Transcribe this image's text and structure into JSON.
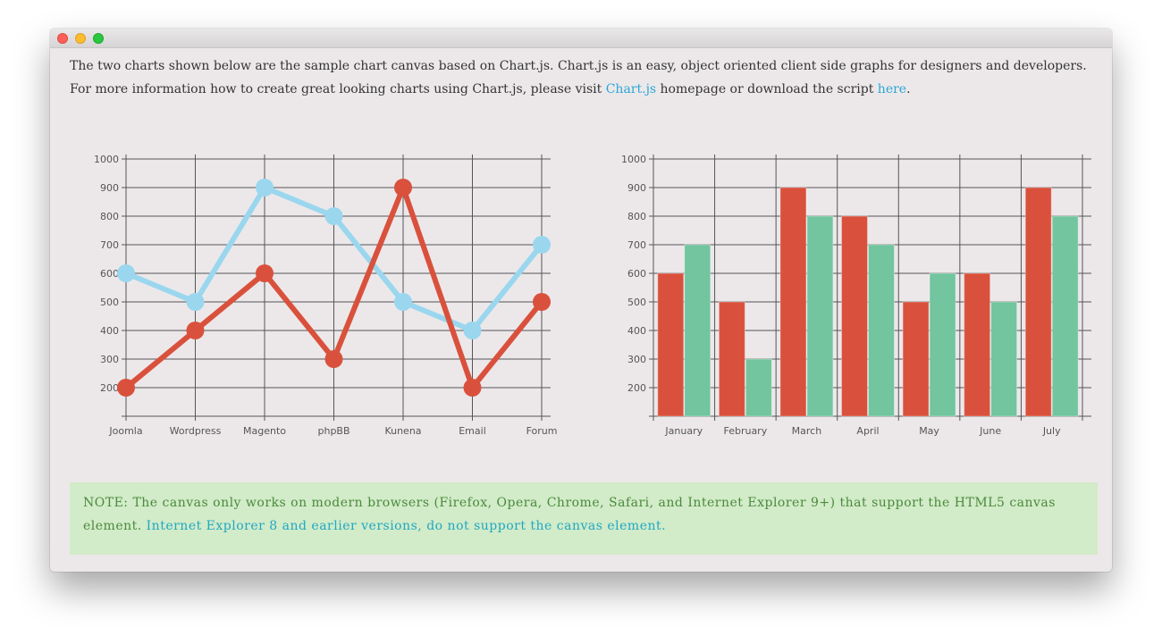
{
  "intro": {
    "line1": "The two charts shown below are the sample chart canvas based on Chart.js. Chart.js is an easy, object oriented client side graphs for designers and developers.",
    "line2_before": "For more information how to create great looking charts using Chart.js, please visit ",
    "link_chartjs": "Chart.js",
    "line2_middle": " homepage or download the script ",
    "link_here": "here",
    "line2_after": "."
  },
  "note": {
    "text": "NOTE: The canvas only works on modern browsers (Firefox, Opera, Chrome, Safari, and Internet Explorer 9+) that support the HTML5 canvas element. ",
    "link": "Internet Explorer 8 and earlier versions, do not support the canvas element."
  },
  "colors": {
    "red": "#d9513c",
    "blue": "#9ad7ee",
    "green": "#72c59e",
    "grid": "#555555"
  },
  "chart_data": [
    {
      "type": "line",
      "categories": [
        "Joomla",
        "Wordpress",
        "Magento",
        "phpBB",
        "Kunena",
        "Email",
        "Forum"
      ],
      "series": [
        {
          "color": "#9ad7ee",
          "values": [
            600,
            500,
            900,
            800,
            500,
            400,
            700
          ]
        },
        {
          "color": "#d9513c",
          "values": [
            200,
            400,
            600,
            300,
            900,
            200,
            500
          ]
        }
      ],
      "yticks": [
        200,
        300,
        400,
        500,
        600,
        700,
        800,
        900,
        1000
      ],
      "ylim": [
        100,
        1000
      ],
      "grid": true
    },
    {
      "type": "bar",
      "categories": [
        "January",
        "February",
        "March",
        "April",
        "May",
        "June",
        "July"
      ],
      "series": [
        {
          "color": "#d9513c",
          "values": [
            600,
            500,
            900,
            800,
            500,
            600,
            900
          ]
        },
        {
          "color": "#72c59e",
          "values": [
            700,
            300,
            800,
            700,
            600,
            500,
            800
          ]
        }
      ],
      "yticks": [
        200,
        300,
        400,
        500,
        600,
        700,
        800,
        900,
        1000
      ],
      "ylim": [
        100,
        1000
      ],
      "grid": true
    }
  ]
}
